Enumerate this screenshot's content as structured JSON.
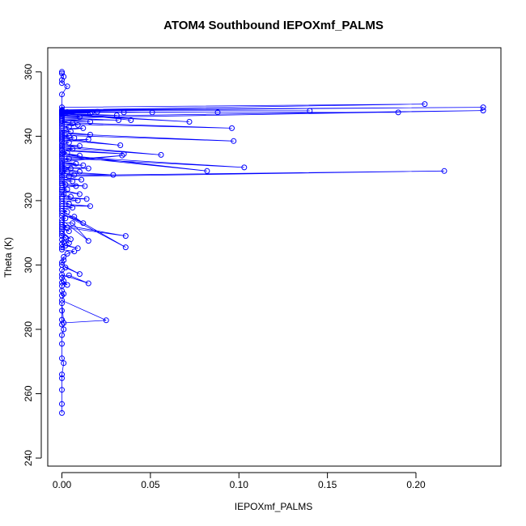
{
  "chart_data": {
    "type": "scatter",
    "title": "ATOM4 Southbound IEPOXmf_PALMS",
    "xlabel": "IEPOXmf_PALMS",
    "ylabel": "Theta (K)",
    "xlim": [
      -0.008,
      0.248
    ],
    "ylim": [
      237.5,
      367.5
    ],
    "xticks": [
      0.0,
      0.05,
      0.1,
      0.15,
      0.2
    ],
    "xtick_labels": [
      "0.00",
      "0.05",
      "0.10",
      "0.15",
      "0.20"
    ],
    "yticks": [
      240,
      260,
      280,
      300,
      320,
      340,
      360
    ],
    "ytick_labels": [
      "240",
      "260",
      "280",
      "300",
      "320",
      "340",
      "360"
    ],
    "grid": false,
    "connected": true,
    "series": [
      {
        "color": "#0000ff",
        "marker": "open-circle",
        "x": [
          0.0,
          0.0,
          0.0,
          0.0,
          0.0,
          0.001,
          0.0,
          0.0,
          0.0,
          0.001,
          0.0,
          0.0,
          0.0,
          0.0,
          0.001,
          0.025,
          0.0,
          0.001,
          0.0,
          0.0,
          0.0,
          0.001,
          0.003,
          0.0,
          0.0,
          0.004,
          0.015,
          0.0,
          0.0,
          0.002,
          0.01,
          0.0,
          0.0,
          0.001,
          0.001,
          0.003,
          0.007,
          0.0,
          0.0,
          0.002,
          0.009,
          0.0,
          0.001,
          0.0,
          0.004,
          0.002,
          0.0,
          0.0,
          0.005,
          0.0,
          0.0,
          0.004,
          0.0,
          0.036,
          0.0,
          0.003,
          0.0,
          0.006,
          0.015,
          0.0,
          0.002,
          0.0,
          0.007,
          0.012,
          0.0,
          0.036,
          0.0,
          0.003,
          0.0,
          0.006,
          0.0,
          0.016,
          0.0,
          0.004,
          0.0,
          0.009,
          0.0,
          0.014,
          0.0,
          0.005,
          0.0,
          0.001,
          0.0,
          0.01,
          0.0,
          0.003,
          0.0,
          0.008,
          0.0,
          0.013,
          0.0,
          0.002,
          0.0,
          0.006,
          0.0,
          0.011,
          0.0,
          0.004,
          0.216,
          0.0,
          0.007,
          0.0,
          0.029,
          0.0,
          0.003,
          0.0,
          0.01,
          0.0,
          0.015,
          0.0,
          0.005,
          0.0,
          0.012,
          0.0,
          0.008,
          0.0,
          0.034,
          0.0,
          0.004,
          0.0,
          0.103,
          0.0,
          0.082,
          0.0,
          0.01,
          0.0,
          0.003,
          0.0,
          0.035,
          0.0,
          0.006,
          0.0,
          0.056,
          0.0,
          0.01,
          0.0,
          0.004,
          0.0,
          0.015,
          0.0,
          0.033,
          0.0,
          0.007,
          0.0,
          0.004,
          0.0,
          0.097,
          0.0,
          0.016,
          0.0,
          0.005,
          0.0,
          0.012,
          0.0,
          0.004,
          0.0,
          0.009,
          0.0,
          0.096,
          0.0,
          0.006,
          0.0,
          0.016,
          0.0,
          0.032,
          0.0,
          0.238,
          0.0,
          0.01,
          0.0,
          0.072,
          0.0,
          0.031,
          0.0,
          0.001,
          0.0,
          0.016,
          0.0,
          0.039,
          0.0,
          0.001,
          0.0,
          0.19,
          0.0,
          0.017,
          0.0,
          0.088,
          0.0,
          0.035,
          0.0,
          0.003,
          0.0,
          0.051,
          0.0,
          0.02,
          0.0,
          0.14,
          0.0,
          0.238,
          0.0,
          0.205,
          0.0,
          0.0,
          0.003,
          0.0,
          0.0,
          0.001,
          0.0,
          0.0
        ],
        "y": [
          254.0,
          256.8,
          261.2,
          264.8,
          266.0,
          269.5,
          271.0,
          275.5,
          278.2,
          280.0,
          281.5,
          283.0,
          285.8,
          288.1,
          282.0,
          282.8,
          289.0,
          291.0,
          290.5,
          292.0,
          293.5,
          295.0,
          293.8,
          294.5,
          296.0,
          296.8,
          294.3,
          297.0,
          298.5,
          299.2,
          297.2,
          300.0,
          300.8,
          301.5,
          302.5,
          303.5,
          304.2,
          304.8,
          305.5,
          306.0,
          305.2,
          306.5,
          307.2,
          307.8,
          306.8,
          308.5,
          309.0,
          309.8,
          308.0,
          310.5,
          311.2,
          310.5,
          311.8,
          309.0,
          312.5,
          311.5,
          313.2,
          313.0,
          307.5,
          314.0,
          314.5,
          315.2,
          315.0,
          313.0,
          316.0,
          305.5,
          316.8,
          316.5,
          317.5,
          317.8,
          318.3,
          318.3,
          319.0,
          319.0,
          319.8,
          320.0,
          320.6,
          320.5,
          321.2,
          321.2,
          322.0,
          322.0,
          322.8,
          322.0,
          323.4,
          323.5,
          324.0,
          324.5,
          324.8,
          324.5,
          325.4,
          325.0,
          326.0,
          326.0,
          326.7,
          326.5,
          327.3,
          327.5,
          329.2,
          327.8,
          328.0,
          328.5,
          328.0,
          329.0,
          329.0,
          329.5,
          329.0,
          330.0,
          330.0,
          330.5,
          330.0,
          331.0,
          331.0,
          331.5,
          331.5,
          332.0,
          334.0,
          332.5,
          333.0,
          333.2,
          330.3,
          333.8,
          329.2,
          334.3,
          334.0,
          334.8,
          334.8,
          335.5,
          334.5,
          335.9,
          336.0,
          336.5,
          334.2,
          337.0,
          337.0,
          337.5,
          338.0,
          338.3,
          339.0,
          338.8,
          337.2,
          339.3,
          339.5,
          339.8,
          340.0,
          340.3,
          338.5,
          340.8,
          340.5,
          341.3,
          341.5,
          341.8,
          342.5,
          342.5,
          342.8,
          343.2,
          343.5,
          343.8,
          342.5,
          344.3,
          344.0,
          344.8,
          344.5,
          345.2,
          345.0,
          345.7,
          348.0,
          346.2,
          346.0,
          346.6,
          344.5,
          346.9,
          346.5,
          347.1,
          347.0,
          347.2,
          347.2,
          347.3,
          345.0,
          347.4,
          347.4,
          347.4,
          347.4,
          347.4,
          347.5,
          347.5,
          347.4,
          347.6,
          347.4,
          347.8,
          347.5,
          347.8,
          347.4,
          347.9,
          347.6,
          348.0,
          347.9,
          348.0,
          349.0,
          348.2,
          350.0,
          349.0,
          353.0,
          355.5,
          356.5,
          357.5,
          358.5,
          359.5,
          360.0
        ]
      }
    ]
  }
}
